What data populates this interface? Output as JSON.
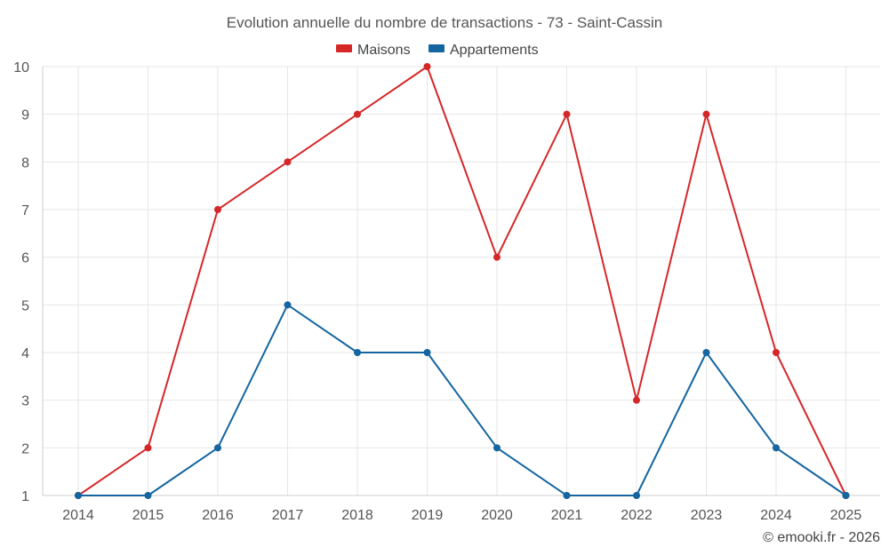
{
  "chart_data": {
    "type": "line",
    "title": "Evolution annuelle du nombre de transactions - 73 - Saint-Cassin",
    "xlabel": "",
    "ylabel": "",
    "categories": [
      "2014",
      "2015",
      "2016",
      "2017",
      "2018",
      "2019",
      "2020",
      "2021",
      "2022",
      "2023",
      "2024",
      "2025"
    ],
    "ylim": [
      1,
      10
    ],
    "yticks": [
      "1",
      "2",
      "3",
      "4",
      "5",
      "6",
      "7",
      "8",
      "9",
      "10"
    ],
    "grid": true,
    "legend_position": "top-center",
    "series": [
      {
        "name": "Maisons",
        "color": "#d62728",
        "values": [
          1,
          2,
          7,
          8,
          9,
          10,
          6,
          9,
          3,
          9,
          4,
          1
        ]
      },
      {
        "name": "Appartements",
        "color": "#1465a0",
        "values": [
          1,
          1,
          2,
          5,
          4,
          4,
          2,
          1,
          1,
          4,
          2,
          1
        ]
      }
    ]
  },
  "credit": "© emooki.fr - 2026"
}
